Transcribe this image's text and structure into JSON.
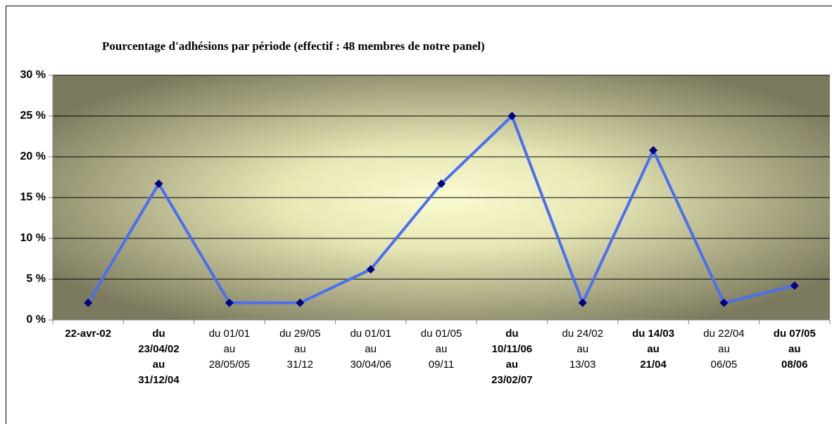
{
  "chart_data": {
    "type": "line",
    "title": "Pourcentage d'adhésions par période (effectif : 48 membres de notre panel)",
    "categories": [
      [
        "22-avr-02"
      ],
      [
        "du",
        "23/04/02",
        "au",
        "31/12/04"
      ],
      [
        "du 01/01",
        "au",
        "28/05/05"
      ],
      [
        "du 29/05",
        "au",
        "31/12"
      ],
      [
        "du 01/01",
        "au",
        "30/04/06"
      ],
      [
        "du 01/05",
        "au",
        "09/11"
      ],
      [
        "du",
        "10/11/06",
        "au",
        "23/02/07"
      ],
      [
        "du 24/02",
        "au",
        "13/03"
      ],
      [
        "du 14/03",
        "au",
        "21/04"
      ],
      [
        "du 22/04",
        "au",
        "06/05"
      ],
      [
        "du 07/05",
        "au",
        "08/06"
      ]
    ],
    "bold_categories": [
      true,
      true,
      false,
      false,
      false,
      false,
      true,
      false,
      true,
      false,
      true
    ],
    "series": [
      {
        "name": "Adhésions",
        "color": "#4a6ff2",
        "marker_color": "#000080",
        "values": [
          2.1,
          16.7,
          2.1,
          2.1,
          6.2,
          16.7,
          25,
          2.1,
          20.8,
          2.1,
          4.2
        ]
      }
    ],
    "ylim": [
      0,
      30
    ],
    "yticks": [
      {
        "value": 0,
        "label": "0 %"
      },
      {
        "value": 5,
        "label": "5 %"
      },
      {
        "value": 10,
        "label": "10 %"
      },
      {
        "value": 15,
        "label": "15 %"
      },
      {
        "value": 20,
        "label": "20 %"
      },
      {
        "value": 25,
        "label": "25 %"
      },
      {
        "value": 30,
        "label": "30 %"
      }
    ],
    "grid": true
  }
}
